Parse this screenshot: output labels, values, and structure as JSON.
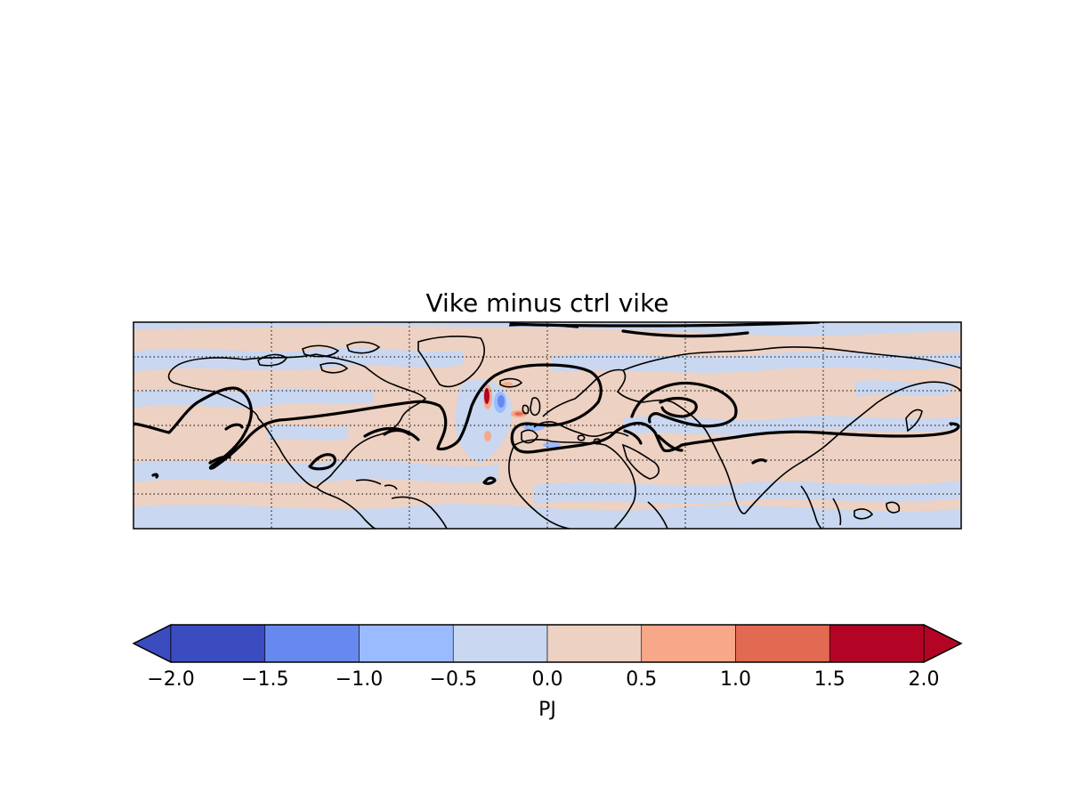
{
  "figure": {
    "title": "Vike minus ctrl vike"
  },
  "colorbar": {
    "label": "PJ",
    "extend": "both",
    "levels": [
      -2.0,
      -1.5,
      -1.0,
      -0.5,
      0.0,
      0.5,
      1.0,
      1.5,
      2.0
    ],
    "tick_labels": [
      "−2.0",
      "−1.5",
      "−1.0",
      "−0.5",
      "0.0",
      "0.5",
      "1.0",
      "1.5",
      "2.0"
    ],
    "colors": [
      "#3b4cc0",
      "#6788ee",
      "#9abbff",
      "#c9d7f0",
      "#edd1c2",
      "#f7a889",
      "#e26952",
      "#b40426"
    ],
    "under_color": "#3b4cc0",
    "over_color": "#b40426"
  },
  "map": {
    "projection": "cylindrical",
    "grid": "dotted",
    "background_fields": [
      "#c9d7f0",
      "#edd1c2"
    ],
    "contour_color": "#000000"
  }
}
